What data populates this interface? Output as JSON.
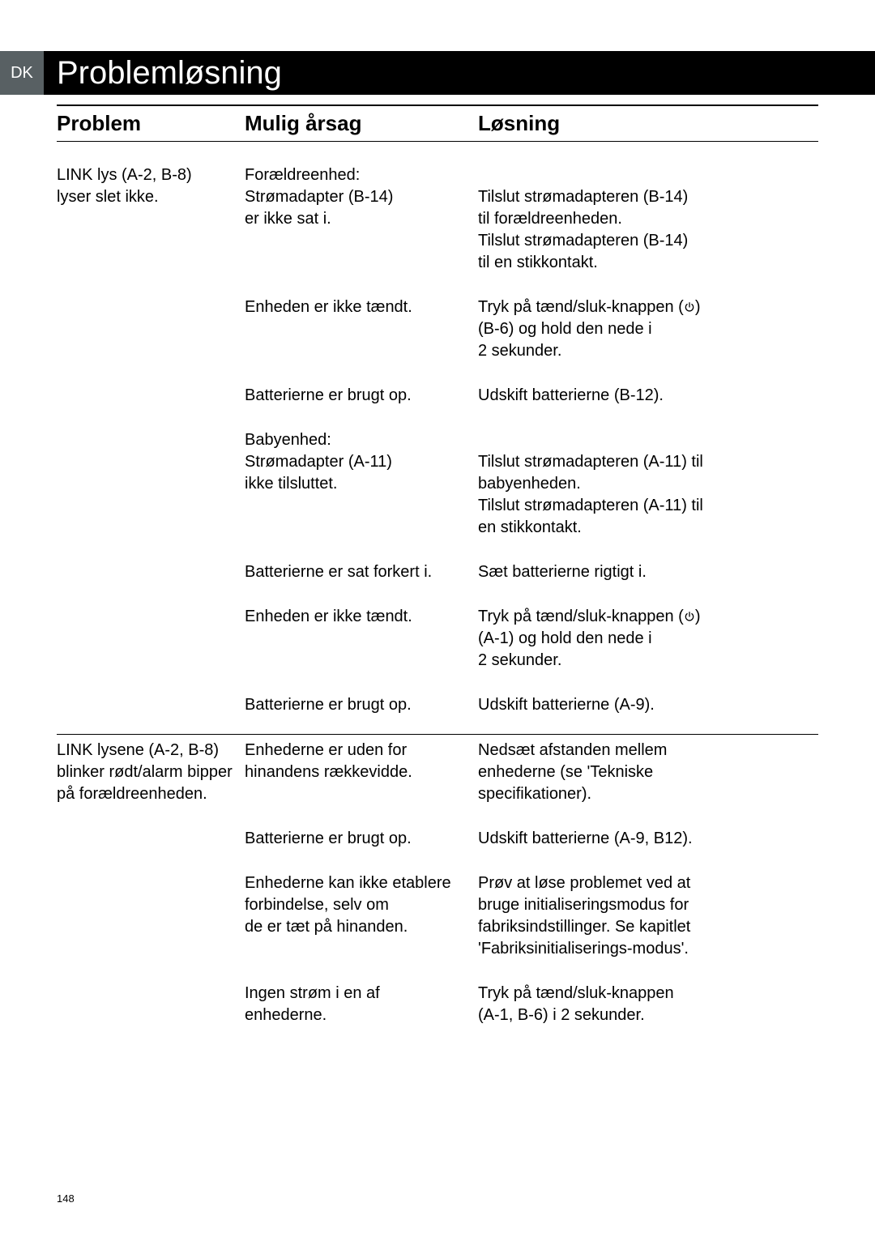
{
  "header": {
    "lang_code": "DK",
    "title": "Problemløsning"
  },
  "table": {
    "head": {
      "c1": "Problem",
      "c2": "Mulig årsag",
      "c3": "Løsning"
    },
    "rows": [
      {
        "c1": "LINK lys (A-2, B-8)\nlyser slet ikke.",
        "c2": "Forældreenhed:\nStrømadapter (B-14)\ner ikke sat i.",
        "c3": "\nTilslut strømadapteren (B-14)\ntil forældreenheden.\nTilslut strømadapteren (B-14)\ntil en stikkontakt.",
        "section_start": true
      },
      {
        "c1": "",
        "c2": "Enheden er ikke tændt.",
        "c3": "Tryk på tænd/sluk-knappen (⏻)\n(B-6) og hold den nede i\n2 sekunder.",
        "has_power_icon": true
      },
      {
        "c1": "",
        "c2": "Batterierne er brugt op.",
        "c3": "Udskift batterierne (B-12)."
      },
      {
        "c1": "",
        "c2": "Babyenhed:\nStrømadapter (A-11)\nikke tilsluttet.",
        "c3": "\nTilslut strømadapteren (A-11) til\nbabyenheden.\nTilslut strømadapteren (A-11) til\nen stikkontakt."
      },
      {
        "c1": "",
        "c2": "Batterierne er sat forkert i.",
        "c3": "Sæt batterierne rigtigt i."
      },
      {
        "c1": "",
        "c2": "Enheden er ikke tændt.",
        "c3": "Tryk på tænd/sluk-knappen (⏻)\n(A-1) og hold den nede i\n2 sekunder.",
        "has_power_icon": true
      },
      {
        "c1": "",
        "c2": "Batterierne er brugt op.",
        "c3": "Udskift batterierne (A-9)."
      },
      {
        "c1": "LINK lysene (A-2, B-8)\nblinker rødt/alarm bipper\npå forældreenheden.",
        "c2": "Enhederne er uden for\nhinandens rækkevidde.",
        "c3": "Nedsæt afstanden mellem\nenhederne (se 'Tekniske\nspecifikationer).",
        "section_div": true
      },
      {
        "c1": "",
        "c2": "Batterierne er brugt op.",
        "c3": "Udskift batterierne (A-9, B12)."
      },
      {
        "c1": "",
        "c2": "Enhederne kan ikke etablere\nforbindelse, selv om\nde er tæt på hinanden.",
        "c3": "Prøv at løse problemet ved at\nbruge initialiseringsmodus for\nfabriksindstillinger. Se kapitlet\n'Fabriksinitialiserings-modus'."
      },
      {
        "c1": "",
        "c2": "Ingen strøm i en af\nenhederne.",
        "c3": "Tryk på tænd/sluk-knappen\n(A-1, B-6) i 2 sekunder."
      }
    ]
  },
  "page_number": "148"
}
